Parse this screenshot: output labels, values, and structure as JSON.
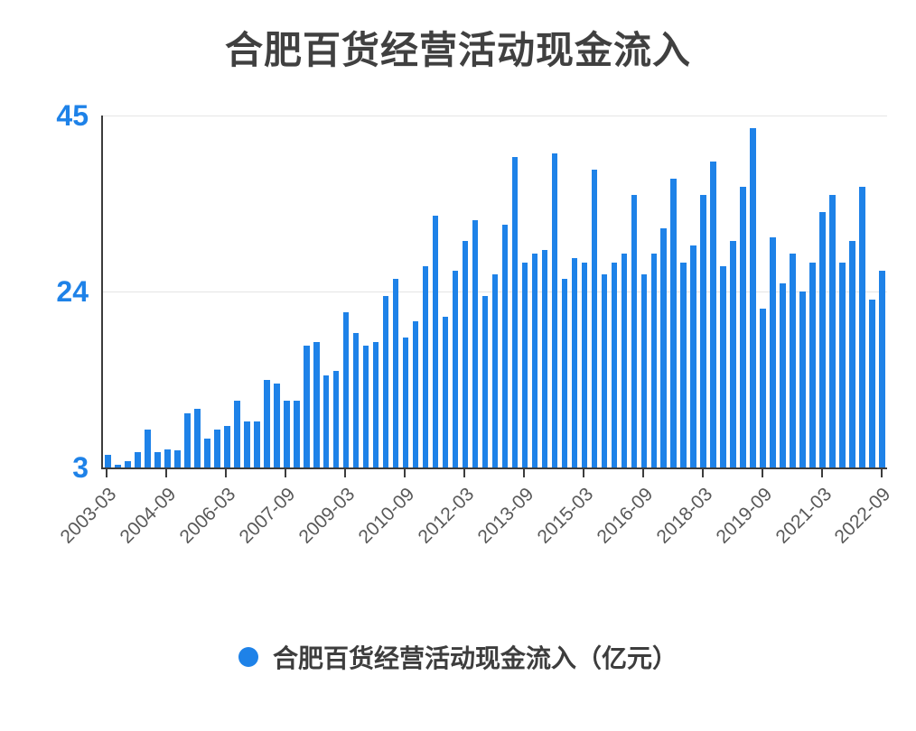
{
  "title": "合肥百货经营活动现金流入",
  "legend": {
    "label": "合肥百货经营活动现金流入（亿元）",
    "marker_color": "#1e82e8"
  },
  "colors": {
    "bar": "#1e82e8",
    "y_axis_label": "#1e82e8",
    "title_text": "#404040",
    "x_axis_label": "#595959",
    "axis_line": "#3c3c3c",
    "gridline": "#e5e5e5"
  },
  "chart_data": {
    "type": "bar",
    "title": "合肥百货经营活动现金流入",
    "ylabel": "亿元",
    "ylim": [
      3,
      45
    ],
    "yticks": [
      3,
      24,
      45
    ],
    "grid": true,
    "legend": [
      "合肥百货经营活动现金流入（亿元）"
    ],
    "legend_position": "bottom",
    "categories": [
      "2003-03",
      "2003-06",
      "2003-09",
      "2003-12",
      "2004-03",
      "2004-06",
      "2004-09",
      "2004-12",
      "2005-03",
      "2005-06",
      "2005-09",
      "2005-12",
      "2006-03",
      "2006-06",
      "2006-09",
      "2006-12",
      "2007-03",
      "2007-06",
      "2007-09",
      "2007-12",
      "2008-03",
      "2008-06",
      "2008-09",
      "2008-12",
      "2009-03",
      "2009-06",
      "2009-09",
      "2009-12",
      "2010-03",
      "2010-06",
      "2010-09",
      "2010-12",
      "2011-03",
      "2011-06",
      "2011-09",
      "2011-12",
      "2012-03",
      "2012-06",
      "2012-09",
      "2012-12",
      "2013-03",
      "2013-06",
      "2013-09",
      "2013-12",
      "2014-03",
      "2014-06",
      "2014-09",
      "2014-12",
      "2015-03",
      "2015-06",
      "2015-09",
      "2015-12",
      "2016-03",
      "2016-06",
      "2016-09",
      "2016-12",
      "2017-03",
      "2017-06",
      "2017-09",
      "2017-12",
      "2018-03",
      "2018-06",
      "2018-09",
      "2018-12",
      "2019-03",
      "2019-06",
      "2019-09",
      "2019-12",
      "2020-03",
      "2020-06",
      "2020-09",
      "2020-12",
      "2021-03",
      "2021-06",
      "2021-09",
      "2021-12",
      "2022-03",
      "2022-06",
      "2022-09"
    ],
    "values": [
      4.5,
      3.3,
      3.8,
      4.8,
      7.5,
      4.8,
      5.2,
      5.0,
      9.5,
      10.0,
      6.5,
      7.5,
      8.0,
      11.0,
      8.5,
      8.5,
      13.5,
      13.0,
      11.0,
      11.0,
      17.5,
      18.0,
      14.0,
      14.5,
      21.5,
      19.0,
      17.5,
      18.0,
      23.5,
      25.5,
      18.5,
      20.5,
      27.0,
      33.0,
      21.0,
      26.5,
      30.0,
      32.5,
      23.5,
      26.0,
      32.0,
      40.0,
      27.5,
      28.5,
      29.0,
      40.5,
      25.5,
      28.0,
      27.5,
      38.5,
      26.0,
      27.5,
      28.5,
      35.5,
      26.0,
      28.5,
      31.5,
      37.5,
      27.5,
      29.5,
      35.5,
      39.5,
      27.0,
      30.0,
      36.5,
      43.5,
      22.0,
      30.5,
      25.0,
      28.5,
      24.0,
      27.5,
      33.5,
      35.5,
      27.5,
      30.0,
      36.5,
      23.0,
      26.5
    ],
    "xticks": [
      "2003-03",
      "2004-09",
      "2006-03",
      "2007-09",
      "2009-03",
      "2010-09",
      "2012-03",
      "2013-09",
      "2015-03",
      "2016-09",
      "2018-03",
      "2019-09",
      "2021-03",
      "2022-09"
    ]
  }
}
